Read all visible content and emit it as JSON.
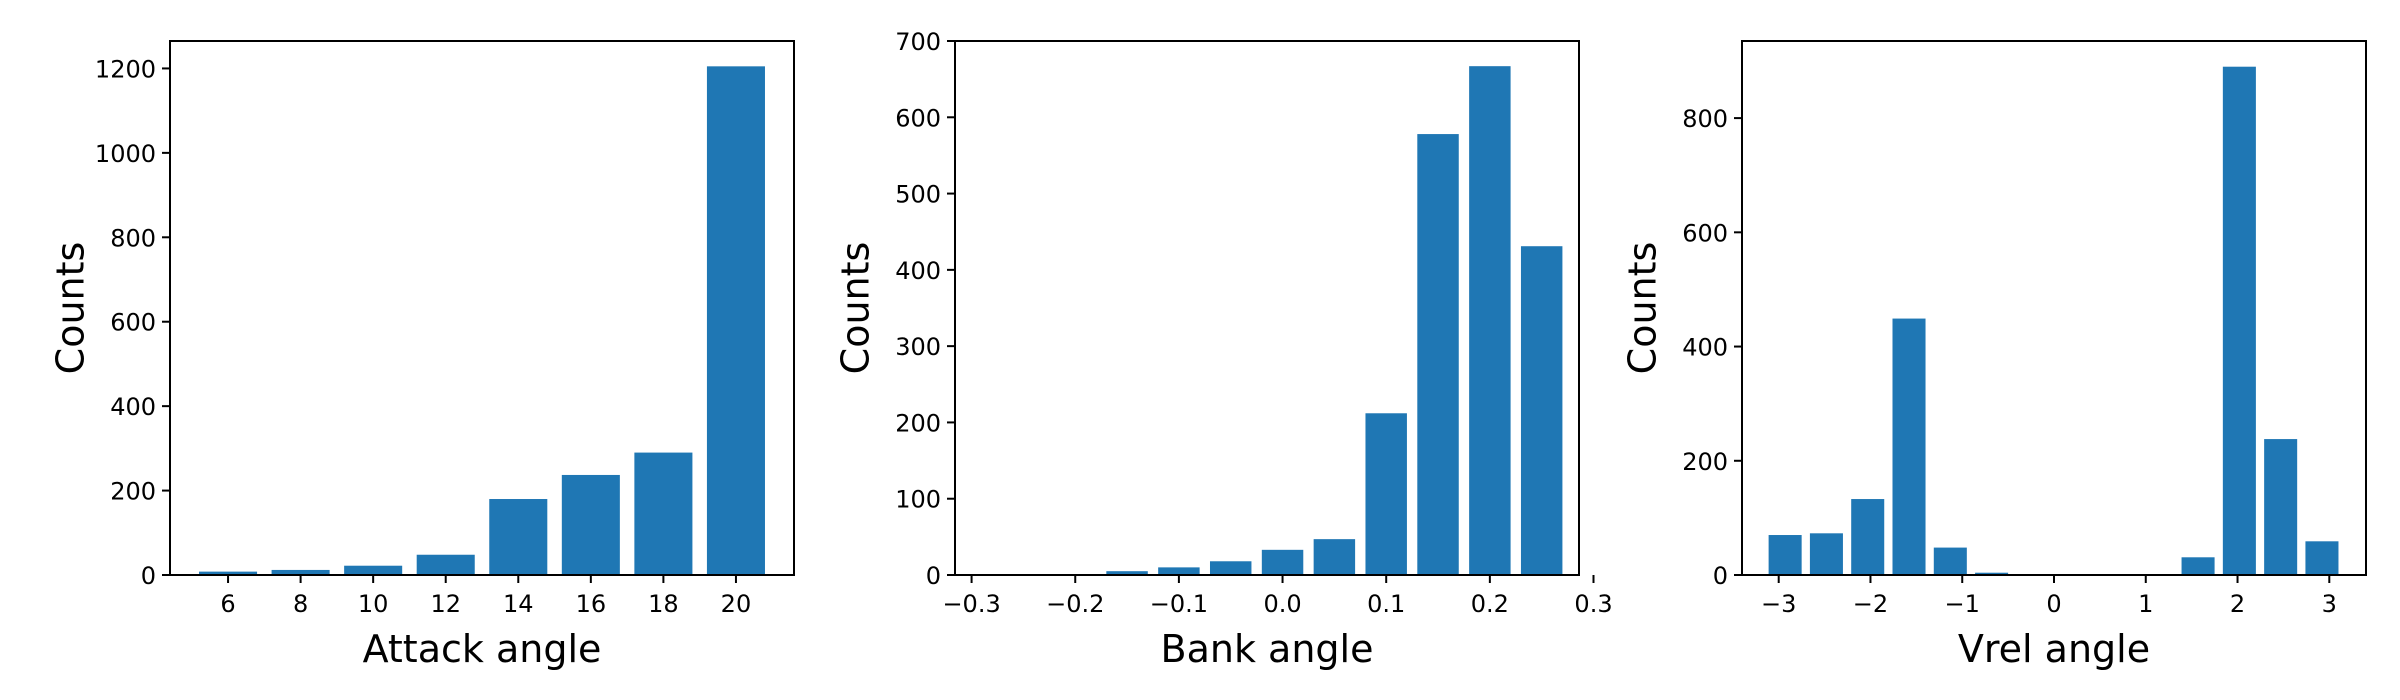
{
  "chart_data": [
    {
      "type": "bar",
      "xlabel": "Attack angle",
      "ylabel": "Counts",
      "color": "#1f77b4",
      "x": [
        6,
        8,
        10,
        12,
        14,
        16,
        18,
        20
      ],
      "values": [
        8,
        12,
        22,
        48,
        180,
        237,
        290,
        1205
      ],
      "bar_width": 1.6,
      "xlim": [
        4.4,
        21.6
      ],
      "ylim": [
        0,
        1265
      ],
      "xticks": [
        6,
        8,
        10,
        12,
        14,
        16,
        18,
        20
      ],
      "xtick_labels": [
        "6",
        "8",
        "10",
        "12",
        "14",
        "16",
        "18",
        "20"
      ],
      "yticks": [
        0,
        200,
        400,
        600,
        800,
        1000,
        1200
      ],
      "ytick_labels": [
        "0",
        "200",
        "400",
        "600",
        "800",
        "1000",
        "1200"
      ]
    },
    {
      "type": "bar",
      "xlabel": "Bank angle",
      "ylabel": "Counts",
      "color": "#1f77b4",
      "x": [
        -0.3,
        -0.25,
        -0.2,
        -0.15,
        -0.1,
        -0.05,
        0.0,
        0.05,
        0.1,
        0.15,
        0.2,
        0.25
      ],
      "values": [
        0,
        0,
        1,
        5,
        10,
        18,
        33,
        47,
        212,
        578,
        667,
        431
      ],
      "bar_width": 0.04,
      "xlim": [
        -0.316,
        0.286
      ],
      "ylim": [
        0,
        700
      ],
      "xticks": [
        -0.3,
        -0.2,
        -0.1,
        0.0,
        0.1,
        0.2,
        0.3
      ],
      "xtick_labels": [
        "−0.3",
        "−0.2",
        "−0.1",
        "0.0",
        "0.1",
        "0.2",
        "0.3"
      ],
      "yticks": [
        0,
        100,
        200,
        300,
        400,
        500,
        600,
        700
      ],
      "ytick_labels": [
        "0",
        "100",
        "200",
        "300",
        "400",
        "500",
        "600",
        "700"
      ]
    },
    {
      "type": "bar",
      "xlabel": "Vrel angle",
      "ylabel": "Counts",
      "color": "#1f77b4",
      "x": [
        -2.93,
        -2.48,
        -2.03,
        -1.58,
        -1.13,
        -0.68,
        -0.23,
        0.22,
        0.67,
        1.12,
        1.57,
        2.02,
        2.47,
        2.92
      ],
      "values": [
        70,
        73,
        133,
        449,
        48,
        4,
        0,
        0,
        0,
        0,
        31,
        890,
        238,
        59
      ],
      "bar_width": 0.36,
      "xlim": [
        -3.4,
        3.4
      ],
      "ylim": [
        0,
        935
      ],
      "xticks": [
        -3,
        -2,
        -1,
        0,
        1,
        2,
        3
      ],
      "xtick_labels": [
        "−3",
        "−2",
        "−1",
        "0",
        "1",
        "2",
        "3"
      ],
      "yticks": [
        0,
        200,
        400,
        600,
        800
      ],
      "ytick_labels": [
        "0",
        "200",
        "400",
        "600",
        "800"
      ]
    }
  ]
}
